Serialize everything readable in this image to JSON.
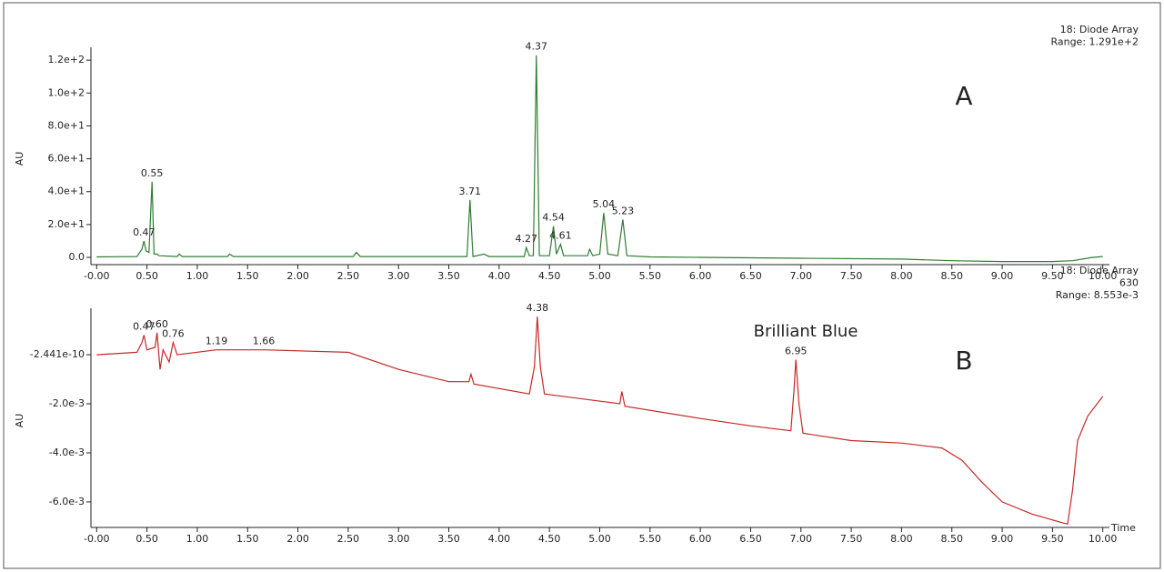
{
  "chart_data": [
    {
      "type": "line",
      "header": [
        "18: Diode Array",
        "Range: 1.291e+2"
      ],
      "panel_label": "A",
      "y_label": "AU",
      "x": [
        0,
        0.4,
        0.45,
        0.47,
        0.49,
        0.52,
        0.55,
        0.57,
        0.6,
        0.62,
        0.8,
        0.82,
        0.85,
        1.3,
        1.32,
        1.36,
        2.55,
        2.58,
        2.62,
        3.68,
        3.71,
        3.74,
        3.85,
        3.9,
        4.25,
        4.27,
        4.3,
        4.34,
        4.37,
        4.4,
        4.5,
        4.54,
        4.57,
        4.61,
        4.64,
        4.88,
        4.9,
        4.93,
        5.0,
        5.04,
        5.08,
        5.18,
        5.23,
        5.27,
        5.5,
        6,
        7,
        8,
        8.5,
        9,
        9.5,
        9.7,
        9.9,
        10
      ],
      "series": [
        {
          "color": "#2e7d32",
          "values": [
            0.3,
            0.5,
            5,
            10,
            4,
            3,
            46,
            2,
            2,
            1,
            0.5,
            2,
            0.5,
            0.5,
            2,
            0.5,
            0.5,
            3,
            0.5,
            0.5,
            35,
            0.5,
            2,
            0.5,
            0.5,
            6,
            1,
            1,
            123,
            1,
            1,
            19,
            2,
            8,
            1,
            1,
            5,
            1,
            2,
            27,
            2,
            1,
            23,
            1,
            0.3,
            0,
            -0.5,
            -1,
            -2,
            -2.5,
            -2.5,
            -2,
            0,
            0.5
          ]
        }
      ],
      "xlim": [
        -0.03,
        10.03
      ],
      "xticks": [
        {
          "value": 0,
          "label": "-0.00"
        },
        {
          "value": 0.5,
          "label": "0.50"
        },
        {
          "value": 1,
          "label": "1.00"
        },
        {
          "value": 1.5,
          "label": "1.50"
        },
        {
          "value": 2,
          "label": "2.00"
        },
        {
          "value": 2.5,
          "label": "2.50"
        },
        {
          "value": 3,
          "label": "3.00"
        },
        {
          "value": 3.5,
          "label": "3.50"
        },
        {
          "value": 4,
          "label": "4.00"
        },
        {
          "value": 4.5,
          "label": "4.50"
        },
        {
          "value": 5,
          "label": "5.00"
        },
        {
          "value": 5.5,
          "label": "5.50"
        },
        {
          "value": 6,
          "label": "6.00"
        },
        {
          "value": 6.5,
          "label": "6.50"
        },
        {
          "value": 7,
          "label": "7.00"
        },
        {
          "value": 7.5,
          "label": "7.50"
        },
        {
          "value": 8,
          "label": "8.00"
        },
        {
          "value": 8.5,
          "label": "8.50"
        },
        {
          "value": 9,
          "label": "9.00"
        },
        {
          "value": 9.5,
          "label": "9.50"
        },
        {
          "value": 10,
          "label": "10.00"
        }
      ],
      "ylim": [
        -4.4,
        124.5
      ],
      "yticks": [
        {
          "value": 0,
          "label": "0.0"
        },
        {
          "value": 20,
          "label": "2.0e+1"
        },
        {
          "value": 40,
          "label": "4.0e+1"
        },
        {
          "value": 60,
          "label": "6.0e+1"
        },
        {
          "value": 80,
          "label": "8.0e+1"
        },
        {
          "value": 100,
          "label": "1.0e+2"
        },
        {
          "value": 120,
          "label": "1.2e+2"
        }
      ],
      "peaks": [
        0.47,
        0.55,
        3.71,
        4.27,
        4.37,
        4.54,
        4.61,
        5.04,
        5.23
      ]
    },
    {
      "type": "line",
      "header": [
        "18: Diode Array",
        "630",
        "Range: 8.553e-3"
      ],
      "panel_label": "B",
      "y_label": "AU",
      "x_label": "Time",
      "annotation": "Brilliant Blue",
      "x": [
        0,
        0.4,
        0.45,
        0.47,
        0.5,
        0.58,
        0.6,
        0.63,
        0.66,
        0.72,
        0.76,
        0.8,
        1.19,
        1.66,
        2.5,
        3,
        3.5,
        3.7,
        3.72,
        3.75,
        4.3,
        4.35,
        4.38,
        4.41,
        4.45,
        5.2,
        5.22,
        5.25,
        6,
        6.5,
        6.9,
        6.93,
        6.95,
        6.98,
        7.02,
        7.5,
        8,
        8.4,
        8.6,
        8.8,
        9,
        9.3,
        9.6,
        9.65,
        9.7,
        9.75,
        9.85,
        10
      ],
      "series": [
        {
          "color": "#c62828",
          "values": [
            0,
            0.0001,
            0.0005,
            0.0008,
            0.0002,
            0.0003,
            0.0009,
            -0.0006,
            0.0002,
            -0.0003,
            0.0005,
            0,
            0.0002,
            0.0002,
            0.0001,
            -0.0006,
            -0.0011,
            -0.0011,
            -0.0008,
            -0.0012,
            -0.0016,
            -0.0005,
            0.00155,
            -0.0005,
            -0.0016,
            -0.002,
            -0.0015,
            -0.0021,
            -0.0026,
            -0.0029,
            -0.0031,
            -0.0015,
            -0.0002,
            -0.002,
            -0.0032,
            -0.0035,
            -0.0036,
            -0.0038,
            -0.0043,
            -0.0052,
            -0.006,
            -0.0065,
            -0.00685,
            -0.0069,
            -0.0055,
            -0.0035,
            -0.0025,
            -0.0017
          ]
        }
      ],
      "xlim": [
        -0.03,
        10.03
      ],
      "xticks": [
        {
          "value": 0,
          "label": "-0.00"
        },
        {
          "value": 0.5,
          "label": "0.50"
        },
        {
          "value": 1,
          "label": "1.00"
        },
        {
          "value": 1.5,
          "label": "1.50"
        },
        {
          "value": 2,
          "label": "2.00"
        },
        {
          "value": 2.5,
          "label": "2.50"
        },
        {
          "value": 3,
          "label": "3.00"
        },
        {
          "value": 3.5,
          "label": "3.50"
        },
        {
          "value": 4,
          "label": "4.00"
        },
        {
          "value": 4.5,
          "label": "4.50"
        },
        {
          "value": 5,
          "label": "5.00"
        },
        {
          "value": 5.5,
          "label": "5.50"
        },
        {
          "value": 6,
          "label": "6.00"
        },
        {
          "value": 6.5,
          "label": "6.50"
        },
        {
          "value": 7,
          "label": "7.00"
        },
        {
          "value": 7.5,
          "label": "7.50"
        },
        {
          "value": 8,
          "label": "8.00"
        },
        {
          "value": 8.5,
          "label": "8.50"
        },
        {
          "value": 9,
          "label": "9.00"
        },
        {
          "value": 9.5,
          "label": "9.50"
        },
        {
          "value": 10,
          "label": "10.00"
        }
      ],
      "ylim": [
        -0.00704,
        0.00167
      ],
      "yticks": [
        -2.441e-10,
        {
          "value": -0.002,
          "label": "-2.0e-3"
        },
        {
          "value": -0.004,
          "label": "-4.0e-3"
        },
        {
          "value": -0.006,
          "label": "-6.0e-3"
        }
      ],
      "peaks": [
        0.47,
        {
          "value": 0.6,
          "label": "0.60"
        },
        0.76,
        1.19,
        1.66,
        4.38,
        6.95
      ]
    }
  ]
}
